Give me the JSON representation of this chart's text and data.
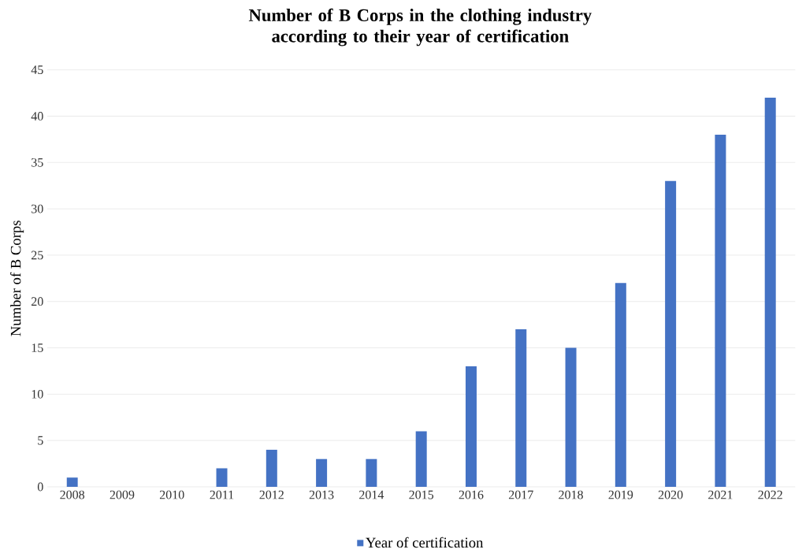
{
  "chart_data": {
    "type": "bar",
    "title": "Number of B Corps in the clothing industry according to their year of certification",
    "ylabel": "Number of B Corps",
    "categories": [
      "2008",
      "2009",
      "2010",
      "2011",
      "2012",
      "2013",
      "2014",
      "2015",
      "2016",
      "2017",
      "2018",
      "2019",
      "2020",
      "2021",
      "2022"
    ],
    "series": [
      {
        "name": "Year of certification",
        "color": "#4472c4",
        "values": [
          1,
          0,
          0,
          2,
          4,
          3,
          3,
          6,
          13,
          17,
          15,
          22,
          33,
          38,
          42
        ]
      }
    ],
    "ylim": [
      0,
      45
    ],
    "yticks": [
      0,
      5,
      10,
      15,
      20,
      25,
      30,
      35,
      40,
      45
    ],
    "grid": "y",
    "legend": "bottom"
  }
}
